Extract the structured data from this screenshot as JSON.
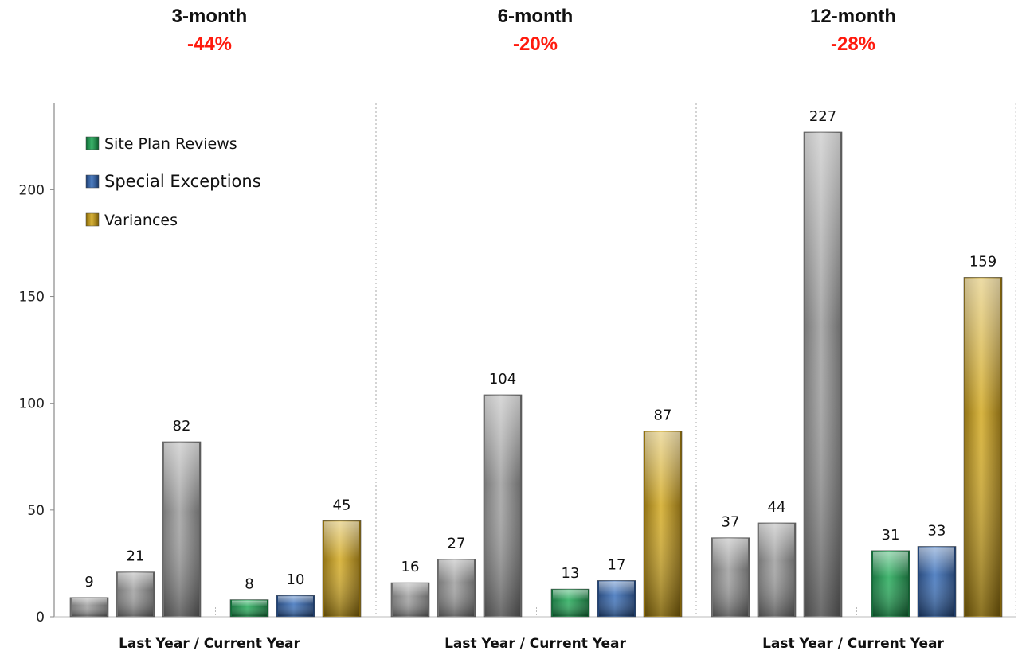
{
  "chart_data": {
    "type": "bar",
    "ylim": [
      0,
      240
    ],
    "yticks": [
      0,
      50,
      100,
      150,
      200
    ],
    "grid": false,
    "legend_position": "top-left",
    "legend": [
      {
        "name": "Site Plan Reviews",
        "color": "#1f8a4c"
      },
      {
        "name": "Special Exceptions",
        "color": "#2f5a9a"
      },
      {
        "name": "Variances",
        "color": "#b8901a"
      }
    ],
    "last_year_color": "#8c8c8c",
    "change_color": "#ff1a0d",
    "panels": [
      {
        "title": "3-month",
        "change": "-44%",
        "xlabel": "Last Year / Current Year",
        "last_year": [
          9,
          21,
          82
        ],
        "current_year": [
          8,
          10,
          45
        ]
      },
      {
        "title": "6-month",
        "change": "-20%",
        "xlabel": "Last Year / Current Year",
        "last_year": [
          16,
          27,
          104
        ],
        "current_year": [
          13,
          17,
          87
        ]
      },
      {
        "title": "12-month",
        "change": "-28%",
        "xlabel": "Last Year / Current Year",
        "last_year": [
          37,
          44,
          227
        ],
        "current_year": [
          31,
          33,
          159
        ]
      }
    ]
  }
}
